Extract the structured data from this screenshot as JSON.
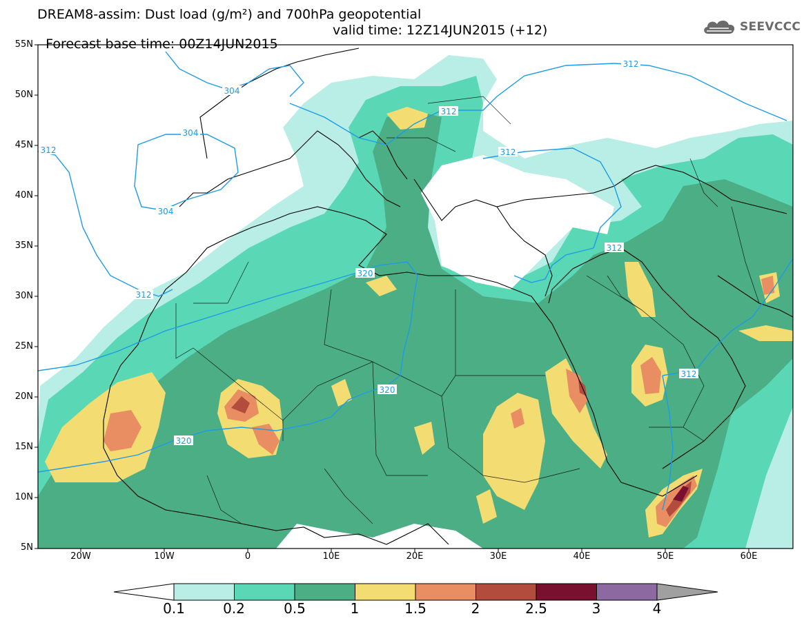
{
  "header": {
    "title_line1": "DREAM8-assim: Dust load (g/m²) and 700hPa geopotential",
    "title_line2": "Forecast base time: 00Z14JUN2015",
    "valid_time": "valid time: 12Z14JUN2015 (+12)",
    "logo_text": "SEEVCCC",
    "logo_icon": "cloud-icon"
  },
  "map": {
    "lon_ticks": [
      "20W",
      "10W",
      "0",
      "10E",
      "20E",
      "30E",
      "40E",
      "50E",
      "60E"
    ],
    "lat_ticks": [
      "55N",
      "50N",
      "45N",
      "40N",
      "35N",
      "30N",
      "25N",
      "20N",
      "15N",
      "10N",
      "5N"
    ],
    "contour_labels": [
      "304",
      "304",
      "304",
      "312",
      "312",
      "312",
      "312",
      "312",
      "312",
      "312",
      "320",
      "320",
      "320"
    ],
    "legend_levels": [
      "0.1",
      "0.2",
      "0.5",
      "1",
      "1.5",
      "2",
      "2.5",
      "3",
      "4"
    ],
    "legend_colors": [
      "#b8eee6",
      "#5ad7b4",
      "#4cae85",
      "#f3dd72",
      "#e98e63",
      "#b24c3c",
      "#7a1030",
      "#8c69a0",
      "#a0a0a0"
    ],
    "contour_color": "#1e9be6",
    "coast_color": "#000000"
  }
}
